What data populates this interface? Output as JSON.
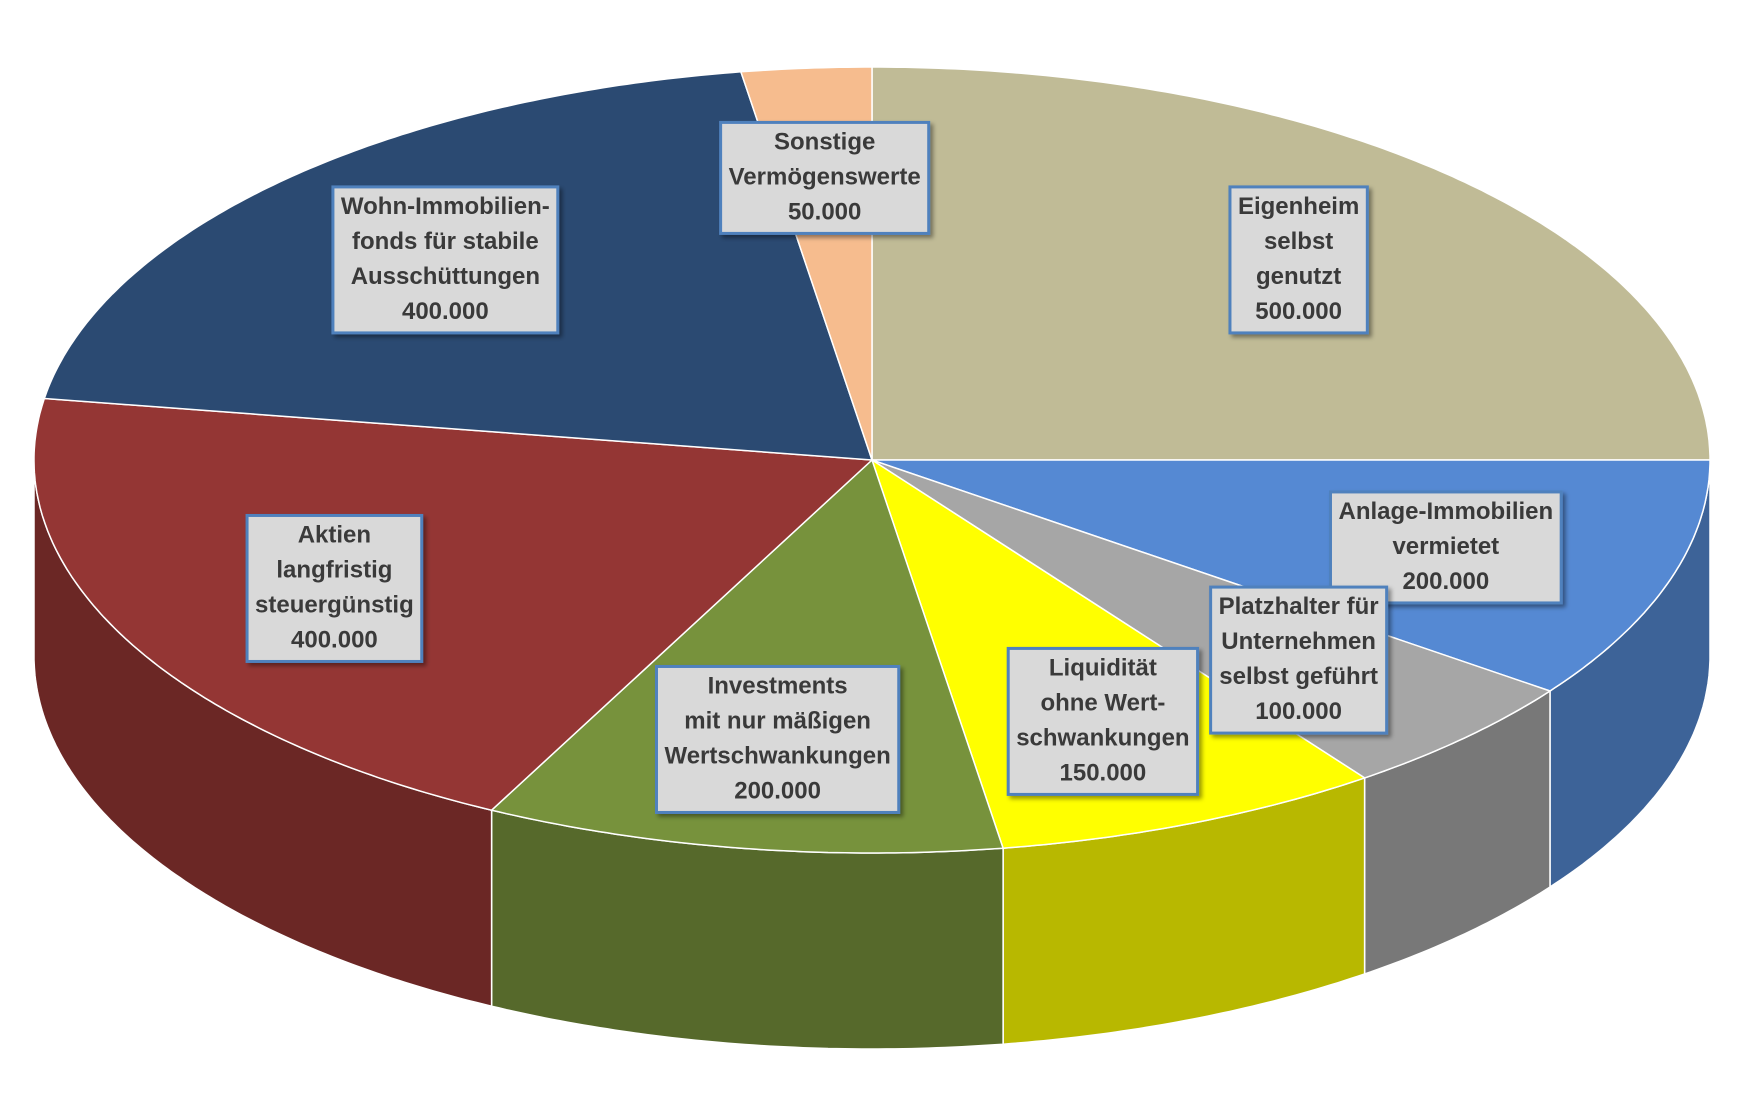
{
  "chart_data": {
    "type": "pie3d",
    "categories": [
      [
        "Eigenheim",
        "selbst",
        "genutzt"
      ],
      [
        "Anlage-Immobilien",
        "vermietet"
      ],
      [
        "Platzhalter für",
        "Unternehmen",
        "selbst geführt"
      ],
      [
        "Liquidität",
        "ohne Wert-",
        "schwankungen"
      ],
      [
        "Investments",
        "mit nur mäßigen",
        "Wertschwankungen"
      ],
      [
        "Aktien",
        "langfristig",
        "steuergünstig"
      ],
      [
        "Wohn-Immobilien-",
        "fonds für stabile",
        "Ausschüttungen"
      ],
      [
        "Sonstige",
        "Vermögenswerte"
      ]
    ],
    "values": [
      500000,
      200000,
      100000,
      150000,
      200000,
      400000,
      400000,
      50000
    ],
    "value_labels": [
      "500.000",
      "200.000",
      "100.000",
      "150.000",
      "200.000",
      "400.000",
      "400.000",
      "50.000"
    ],
    "colors": [
      "#c0bb96",
      "#5589d3",
      "#a6a6a6",
      "#ffff00",
      "#77923c",
      "#943634",
      "#2b4a72",
      "#f6bc8e"
    ]
  }
}
